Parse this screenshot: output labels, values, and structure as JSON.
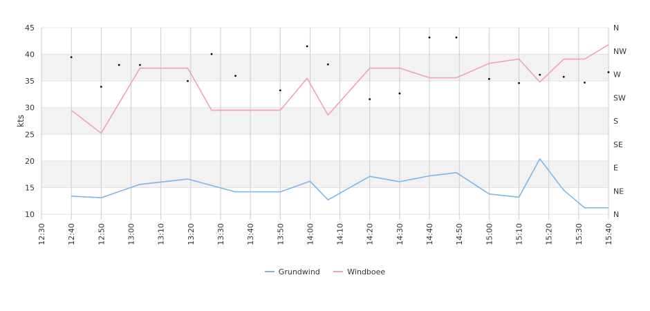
{
  "chart_data": {
    "type": "line",
    "ylabel": "kts",
    "ylim": [
      10,
      45
    ],
    "yticks": [
      10,
      15,
      20,
      25,
      30,
      35,
      40,
      45
    ],
    "x_ticks": [
      "12:30",
      "12:40",
      "12:50",
      "13:00",
      "13:10",
      "13:20",
      "13:30",
      "13:40",
      "13:50",
      "14:00",
      "14:10",
      "14:20",
      "14:30",
      "14:40",
      "14:50",
      "15:00",
      "15:10",
      "15:20",
      "15:30",
      "15:40"
    ],
    "xlim": [
      "12:30",
      "15:40"
    ],
    "grid": true,
    "legend_position": "bottom",
    "series": [
      {
        "name": "Grundwind",
        "color": "#7cb5ec",
        "x": [
          "12:40",
          "12:50",
          "13:03",
          "13:19",
          "13:35",
          "13:50",
          "14:00",
          "14:06",
          "14:20",
          "14:30",
          "14:40",
          "14:49",
          "15:00",
          "15:10",
          "15:17",
          "15:25",
          "15:32",
          "15:40"
        ],
        "values": [
          13.4,
          13.1,
          15.6,
          16.6,
          14.2,
          14.2,
          16.2,
          12.7,
          17.1,
          16.1,
          17.2,
          17.8,
          13.8,
          13.2,
          20.4,
          14.5,
          11.2,
          11.2
        ]
      },
      {
        "name": "Windboee",
        "color": "#f19ec2",
        "x": [
          "12:40",
          "12:50",
          "13:03",
          "13:19",
          "13:27",
          "13:50",
          "13:59",
          "14:06",
          "14:20",
          "14:30",
          "14:40",
          "14:49",
          "15:00",
          "15:10",
          "15:17",
          "15:25",
          "15:32",
          "15:40"
        ],
        "values": [
          29.5,
          25.2,
          37.4,
          37.4,
          29.5,
          29.5,
          35.5,
          28.6,
          37.4,
          37.4,
          35.6,
          35.6,
          38.3,
          39.1,
          34.8,
          39.1,
          39.1,
          41.8
        ]
      }
    ],
    "direction_axis": {
      "labels": [
        "N",
        "NE",
        "E",
        "SE",
        "S",
        "SW",
        "W",
        "NW",
        "N"
      ],
      "degrees": [
        0,
        45,
        90,
        135,
        180,
        225,
        270,
        315,
        360
      ]
    },
    "direction_points": {
      "x": [
        "12:40",
        "12:50",
        "12:56",
        "13:03",
        "13:19",
        "13:27",
        "13:35",
        "13:50",
        "13:59",
        "14:06",
        "14:20",
        "14:30",
        "14:40",
        "14:49",
        "15:00",
        "15:10",
        "15:17",
        "15:25",
        "15:32",
        "15:40"
      ],
      "degrees": [
        303,
        246,
        288,
        288,
        257,
        309,
        267,
        239,
        324,
        289,
        222,
        233,
        341,
        341,
        261,
        253,
        269,
        265,
        254,
        274
      ]
    }
  }
}
